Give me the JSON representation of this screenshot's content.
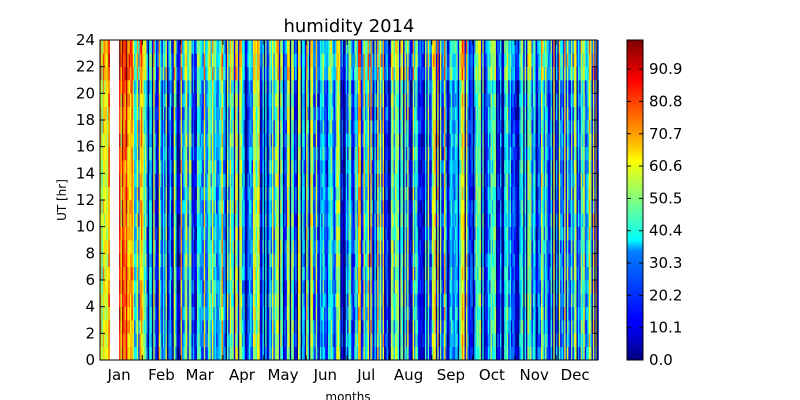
{
  "chart_data": {
    "type": "heatmap",
    "title": "humidity 2014",
    "xlabel": "months",
    "ylabel": "UT [hr]",
    "x_tick_labels": [
      "Jan",
      "Feb",
      "Mar",
      "Apr",
      "May",
      "Jun",
      "Jul",
      "Aug",
      "Sep",
      "Oct",
      "Nov",
      "Dec"
    ],
    "x_range": [
      "2014-01-01",
      "2014-12-31"
    ],
    "ylim": [
      0,
      24
    ],
    "y_ticks": [
      0,
      2,
      4,
      6,
      8,
      10,
      12,
      14,
      16,
      18,
      20,
      22,
      24
    ],
    "colorbar": {
      "colormap": "jet",
      "range": [
        0,
        100
      ],
      "tick_values": [
        0.0,
        10.1,
        20.2,
        30.3,
        40.4,
        50.5,
        60.6,
        70.7,
        80.8,
        90.9
      ],
      "tick_labels": [
        "0.0",
        "10.1",
        "20.2",
        "30.3",
        "40.4",
        "50.5",
        "60.6",
        "70.7",
        "80.8",
        "90.9"
      ]
    },
    "missing_data_periods": [
      [
        "2014-01-08",
        "2014-01-14"
      ]
    ],
    "value_by_month": [
      {
        "month": "Jan",
        "value": 55
      },
      {
        "month": "Feb",
        "value": 30
      },
      {
        "month": "Mar",
        "value": 35
      },
      {
        "month": "Apr",
        "value": 30
      },
      {
        "month": "May",
        "value": 25
      },
      {
        "month": "Jun",
        "value": 28
      },
      {
        "month": "Jul",
        "value": 35
      },
      {
        "month": "Aug",
        "value": 25
      },
      {
        "month": "Sep",
        "value": 35
      },
      {
        "month": "Oct",
        "value": 25
      },
      {
        "month": "Nov",
        "value": 25
      },
      {
        "month": "Dec",
        "value": 30
      }
    ]
  }
}
